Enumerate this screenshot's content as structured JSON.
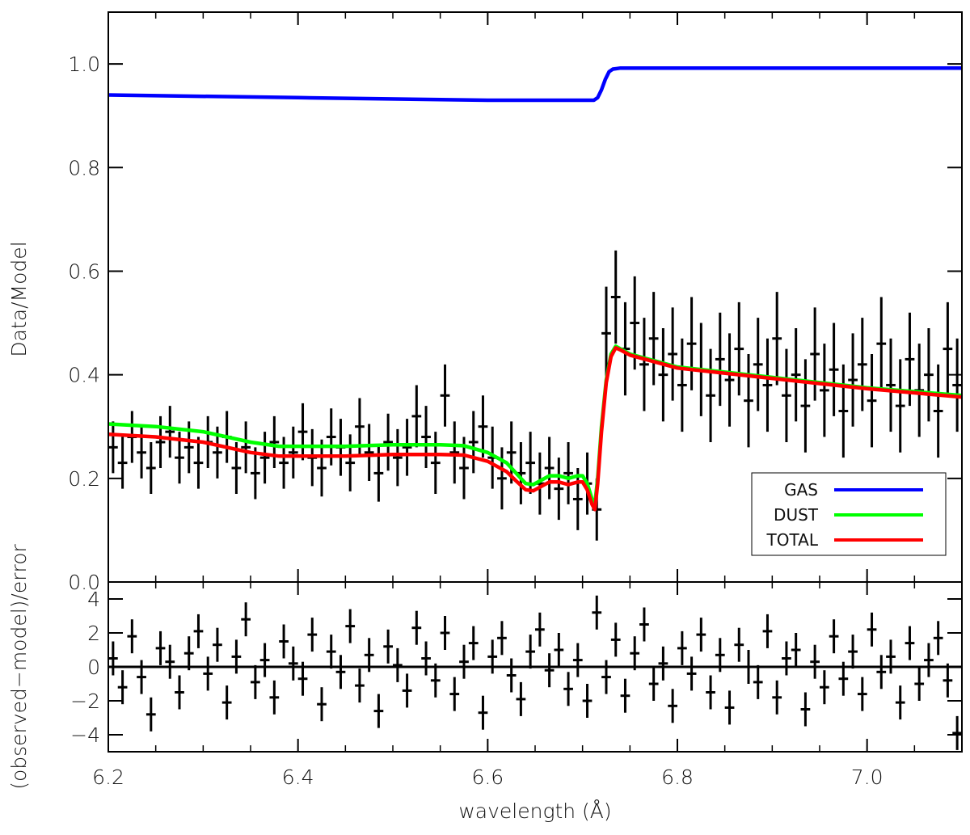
{
  "chart_data": [
    {
      "type": "scatter",
      "panel": "top",
      "ylabel": "Data/Model",
      "xlabel": "",
      "xlim": [
        6.2,
        7.1
      ],
      "ylim": [
        0.0,
        1.1
      ],
      "yticks": [
        0.0,
        0.2,
        0.4,
        0.6,
        0.8,
        1.0
      ],
      "ytick_labels": [
        "0.0",
        "0.2",
        "0.4",
        "0.6",
        "0.8",
        "1.0"
      ],
      "legend": {
        "position": "bottom-right",
        "entries": [
          {
            "label": "GAS",
            "color": "#0000ff"
          },
          {
            "label": "DUST",
            "color": "#00ff00"
          },
          {
            "label": "TOTAL",
            "color": "#ff0000"
          }
        ]
      },
      "series": [
        {
          "name": "GAS",
          "kind": "line",
          "color": "#0000ff",
          "x": [
            6.2,
            6.4,
            6.6,
            6.7,
            6.712,
            6.716,
            6.72,
            6.724,
            6.728,
            6.732,
            6.74,
            6.8,
            7.0,
            7.1
          ],
          "y": [
            0.94,
            0.935,
            0.93,
            0.93,
            0.93,
            0.935,
            0.95,
            0.97,
            0.985,
            0.99,
            0.992,
            0.992,
            0.992,
            0.992
          ]
        },
        {
          "name": "DUST",
          "kind": "line",
          "color": "#00ff00",
          "x": [
            6.2,
            6.25,
            6.3,
            6.35,
            6.38,
            6.45,
            6.5,
            6.55,
            6.575,
            6.6,
            6.62,
            6.63,
            6.64,
            6.648,
            6.655,
            6.665,
            6.675,
            6.685,
            6.695,
            6.7,
            6.705,
            6.71,
            6.713,
            6.716,
            6.72,
            6.725,
            6.73,
            6.735,
            6.74,
            6.75,
            6.8,
            6.9,
            7.0,
            7.1
          ],
          "y": [
            0.305,
            0.3,
            0.29,
            0.27,
            0.262,
            0.262,
            0.265,
            0.265,
            0.263,
            0.25,
            0.23,
            0.21,
            0.19,
            0.188,
            0.195,
            0.205,
            0.205,
            0.2,
            0.205,
            0.205,
            0.19,
            0.16,
            0.15,
            0.2,
            0.3,
            0.39,
            0.44,
            0.455,
            0.45,
            0.44,
            0.415,
            0.395,
            0.375,
            0.36
          ]
        },
        {
          "name": "TOTAL",
          "kind": "line",
          "color": "#ff0000",
          "x": [
            6.2,
            6.25,
            6.3,
            6.35,
            6.38,
            6.45,
            6.5,
            6.55,
            6.575,
            6.6,
            6.62,
            6.63,
            6.64,
            6.648,
            6.655,
            6.665,
            6.675,
            6.685,
            6.695,
            6.7,
            6.705,
            6.71,
            6.713,
            6.716,
            6.72,
            6.725,
            6.73,
            6.735,
            6.74,
            6.75,
            6.8,
            6.9,
            7.0,
            7.1
          ],
          "y": [
            0.285,
            0.28,
            0.27,
            0.25,
            0.243,
            0.243,
            0.246,
            0.246,
            0.245,
            0.233,
            0.213,
            0.195,
            0.178,
            0.176,
            0.183,
            0.193,
            0.193,
            0.188,
            0.193,
            0.193,
            0.178,
            0.15,
            0.14,
            0.19,
            0.29,
            0.385,
            0.435,
            0.452,
            0.448,
            0.438,
            0.413,
            0.393,
            0.373,
            0.357
          ]
        }
      ],
      "data_points": {
        "kind": "errorbar",
        "color": "#000000",
        "x": [
          6.205,
          6.215,
          6.225,
          6.235,
          6.245,
          6.255,
          6.265,
          6.275,
          6.285,
          6.295,
          6.305,
          6.315,
          6.325,
          6.335,
          6.345,
          6.355,
          6.365,
          6.375,
          6.385,
          6.395,
          6.405,
          6.415,
          6.425,
          6.435,
          6.445,
          6.455,
          6.465,
          6.475,
          6.485,
          6.495,
          6.505,
          6.515,
          6.525,
          6.535,
          6.545,
          6.555,
          6.565,
          6.575,
          6.585,
          6.595,
          6.605,
          6.615,
          6.625,
          6.635,
          6.645,
          6.655,
          6.665,
          6.675,
          6.685,
          6.695,
          6.705,
          6.715,
          6.725,
          6.735,
          6.745,
          6.755,
          6.765,
          6.775,
          6.785,
          6.795,
          6.805,
          6.815,
          6.825,
          6.835,
          6.845,
          6.855,
          6.865,
          6.875,
          6.885,
          6.895,
          6.905,
          6.915,
          6.925,
          6.935,
          6.945,
          6.955,
          6.965,
          6.975,
          6.985,
          6.995,
          7.005,
          7.015,
          7.025,
          7.035,
          7.045,
          7.055,
          7.065,
          7.075,
          7.085,
          7.095
        ],
        "y": [
          0.26,
          0.23,
          0.28,
          0.25,
          0.22,
          0.27,
          0.29,
          0.24,
          0.26,
          0.23,
          0.27,
          0.25,
          0.28,
          0.22,
          0.26,
          0.21,
          0.24,
          0.27,
          0.23,
          0.25,
          0.29,
          0.24,
          0.22,
          0.28,
          0.26,
          0.23,
          0.3,
          0.25,
          0.21,
          0.27,
          0.24,
          0.26,
          0.32,
          0.28,
          0.23,
          0.36,
          0.25,
          0.22,
          0.27,
          0.3,
          0.24,
          0.2,
          0.25,
          0.21,
          0.23,
          0.19,
          0.22,
          0.18,
          0.21,
          0.16,
          0.19,
          0.14,
          0.48,
          0.55,
          0.45,
          0.5,
          0.42,
          0.47,
          0.4,
          0.44,
          0.38,
          0.46,
          0.41,
          0.36,
          0.43,
          0.39,
          0.45,
          0.35,
          0.42,
          0.38,
          0.47,
          0.36,
          0.4,
          0.34,
          0.44,
          0.37,
          0.41,
          0.33,
          0.39,
          0.42,
          0.35,
          0.46,
          0.38,
          0.34,
          0.43,
          0.37,
          0.4,
          0.33,
          0.45,
          0.38
        ],
        "yerr": [
          0.05,
          0.05,
          0.05,
          0.05,
          0.05,
          0.05,
          0.05,
          0.05,
          0.05,
          0.05,
          0.05,
          0.05,
          0.05,
          0.05,
          0.05,
          0.05,
          0.05,
          0.05,
          0.05,
          0.05,
          0.055,
          0.055,
          0.055,
          0.055,
          0.055,
          0.055,
          0.055,
          0.055,
          0.055,
          0.055,
          0.055,
          0.055,
          0.06,
          0.06,
          0.06,
          0.06,
          0.06,
          0.06,
          0.06,
          0.06,
          0.06,
          0.06,
          0.06,
          0.06,
          0.06,
          0.06,
          0.06,
          0.06,
          0.06,
          0.06,
          0.06,
          0.06,
          0.09,
          0.09,
          0.09,
          0.09,
          0.09,
          0.09,
          0.09,
          0.09,
          0.09,
          0.09,
          0.09,
          0.09,
          0.09,
          0.09,
          0.09,
          0.09,
          0.09,
          0.09,
          0.09,
          0.09,
          0.09,
          0.09,
          0.09,
          0.09,
          0.09,
          0.09,
          0.09,
          0.09,
          0.09,
          0.09,
          0.09,
          0.09,
          0.09,
          0.09,
          0.09,
          0.09,
          0.09,
          0.09
        ],
        "xerr": 0.005
      }
    },
    {
      "type": "scatter",
      "panel": "bottom",
      "ylabel": "(observed−model)/error",
      "xlabel": "wavelength (Å)",
      "xlim": [
        6.2,
        7.1
      ],
      "ylim": [
        -5,
        5
      ],
      "yticks": [
        -4,
        -2,
        0,
        2,
        4
      ],
      "ytick_labels": [
        "−4",
        "−2",
        "0",
        "2",
        "4"
      ],
      "xticks": [
        6.2,
        6.4,
        6.6,
        6.8,
        7.0
      ],
      "xtick_labels": [
        "6.2",
        "6.4",
        "6.6",
        "6.8",
        "7.0"
      ],
      "zero_line": 0,
      "data_points": {
        "kind": "errorbar",
        "color": "#000000",
        "x": [
          6.205,
          6.215,
          6.225,
          6.235,
          6.245,
          6.255,
          6.265,
          6.275,
          6.285,
          6.295,
          6.305,
          6.315,
          6.325,
          6.335,
          6.345,
          6.355,
          6.365,
          6.375,
          6.385,
          6.395,
          6.405,
          6.415,
          6.425,
          6.435,
          6.445,
          6.455,
          6.465,
          6.475,
          6.485,
          6.495,
          6.505,
          6.515,
          6.525,
          6.535,
          6.545,
          6.555,
          6.565,
          6.575,
          6.585,
          6.595,
          6.605,
          6.615,
          6.625,
          6.635,
          6.645,
          6.655,
          6.665,
          6.675,
          6.685,
          6.695,
          6.705,
          6.715,
          6.725,
          6.735,
          6.745,
          6.755,
          6.765,
          6.775,
          6.785,
          6.795,
          6.805,
          6.815,
          6.825,
          6.835,
          6.845,
          6.855,
          6.865,
          6.875,
          6.885,
          6.895,
          6.905,
          6.915,
          6.925,
          6.935,
          6.945,
          6.955,
          6.965,
          6.975,
          6.985,
          6.995,
          7.005,
          7.015,
          7.025,
          7.035,
          7.045,
          7.055,
          7.065,
          7.075,
          7.085,
          7.095
        ],
        "y": [
          0.5,
          -1.2,
          1.8,
          -0.6,
          -2.8,
          1.1,
          0.3,
          -1.5,
          0.8,
          2.1,
          -0.4,
          1.3,
          -2.1,
          0.6,
          2.8,
          -0.9,
          0.4,
          -1.8,
          1.5,
          0.2,
          -0.7,
          1.9,
          -2.2,
          0.9,
          -0.3,
          2.4,
          -1.1,
          0.7,
          -2.6,
          1.2,
          0.1,
          -1.4,
          2.3,
          0.5,
          -0.8,
          2.0,
          -1.6,
          0.3,
          1.4,
          -2.7,
          0.6,
          1.7,
          -0.5,
          -1.9,
          0.9,
          2.2,
          -0.2,
          1.0,
          -1.3,
          0.4,
          -2.0,
          3.2,
          -0.6,
          1.6,
          -1.7,
          0.8,
          2.5,
          -1.0,
          0.2,
          -2.3,
          1.1,
          -0.4,
          1.9,
          -1.5,
          0.7,
          -2.4,
          1.3,
          0.0,
          -0.9,
          2.1,
          -1.8,
          0.5,
          1.0,
          -2.5,
          0.3,
          -1.2,
          1.8,
          -0.7,
          0.9,
          -1.6,
          2.2,
          -0.3,
          0.6,
          -2.1,
          1.4,
          -1.0,
          0.4,
          1.7,
          -0.8,
          -3.9
        ],
        "yerr": 1.0,
        "xerr": 0.005
      }
    }
  ]
}
